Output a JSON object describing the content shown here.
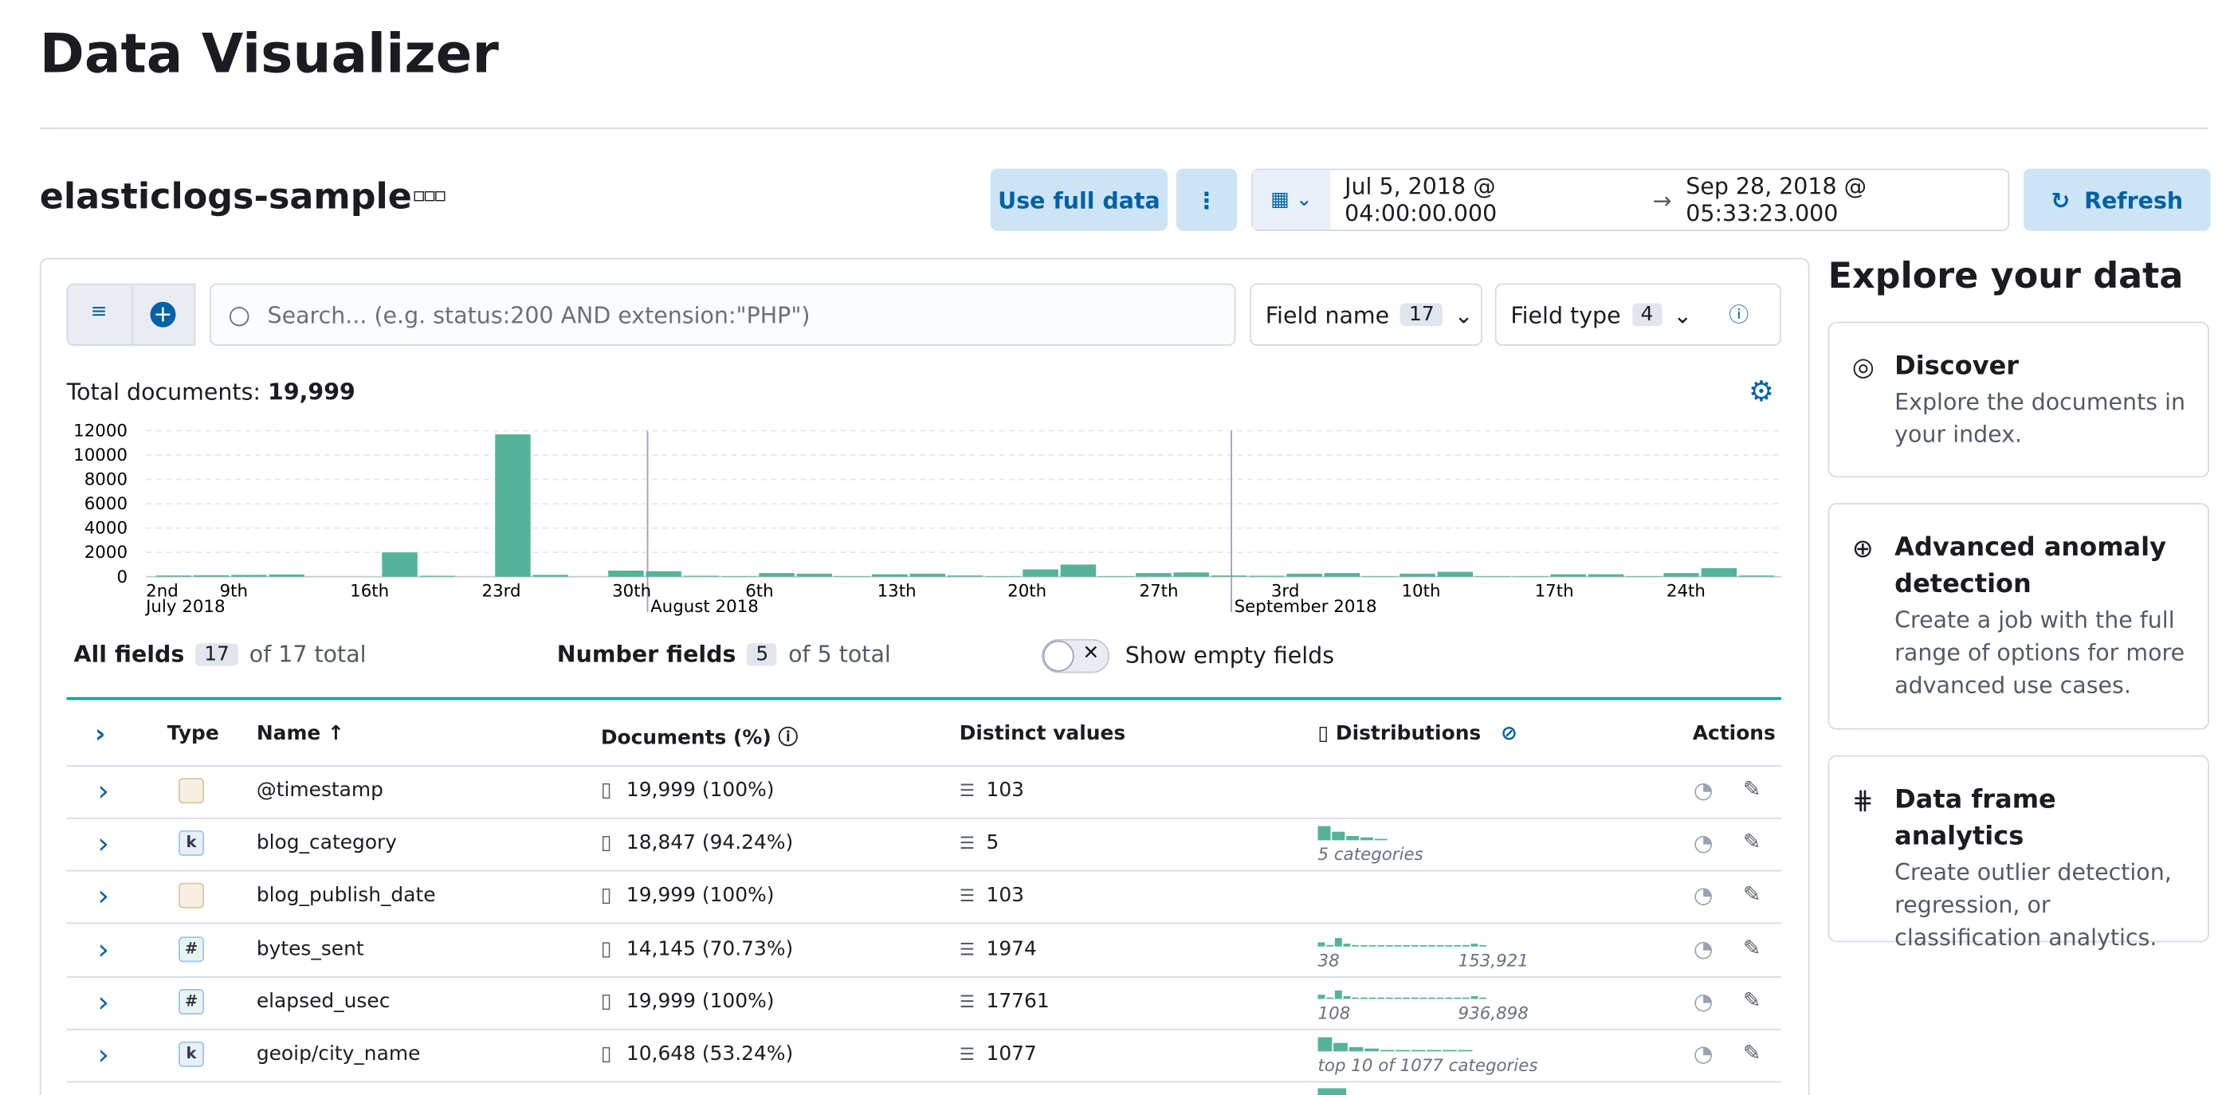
{
  "header": {
    "title": "Data Visualizer"
  },
  "index": {
    "name": "elasticlogs-sample"
  },
  "toolbar": {
    "use_full_data": "Use full data",
    "date_start": "Jul 5, 2018 @ 04:00:00.000",
    "date_end": "Sep 28, 2018 @ 05:33:23.000",
    "refresh": "Refresh"
  },
  "search": {
    "placeholder": "Search... (e.g. status:200 AND extension:\"PHP\")"
  },
  "filters": {
    "field_name": "Field name",
    "field_name_count": "17",
    "field_type": "Field type",
    "field_type_count": "4"
  },
  "totals": {
    "label": "Total documents:",
    "value": "19,999"
  },
  "histogram": {
    "ylim": [
      0,
      12000
    ],
    "yticks": [
      0,
      2000,
      4000,
      6000,
      8000,
      10000,
      12000
    ],
    "values": [
      100,
      120,
      150,
      180,
      0,
      0,
      2000,
      80,
      0,
      11700,
      150,
      0,
      500,
      450,
      80,
      50,
      300,
      250,
      50,
      200,
      250,
      100,
      50,
      600,
      1000,
      50,
      300,
      350,
      100,
      80,
      250,
      300,
      50,
      250,
      400,
      50,
      50,
      200,
      200,
      50,
      300,
      700,
      100
    ],
    "x_labels": [
      "2nd",
      "9th",
      "16th",
      "23rd",
      "30th",
      "6th",
      "13th",
      "20th",
      "27th",
      "3rd",
      "10th",
      "17th",
      "24th"
    ],
    "month_labels": [
      "July 2018",
      "August 2018",
      "September 2018"
    ]
  },
  "summary": {
    "all_fields": "All fields",
    "all_count": "17",
    "all_total": "of 17 total",
    "number_fields": "Number fields",
    "number_count": "5",
    "number_total": "of 5 total",
    "show_empty": "Show empty fields"
  },
  "table": {
    "columns": [
      "Type",
      "Name",
      "Documents (%)",
      "Distinct values",
      "Distributions",
      "Actions"
    ],
    "rows": [
      {
        "type": "",
        "name": "@timestamp",
        "documents": "19,999 (100%)",
        "distinct": "103"
      },
      {
        "type": "k",
        "name": "blog_category",
        "documents": "18,847 (94.24%)",
        "distinct": "5",
        "dist_caption": "5 categories"
      },
      {
        "type": "",
        "name": "blog_publish_date",
        "documents": "19,999 (100%)",
        "distinct": "103"
      },
      {
        "type": "#",
        "name": "bytes_sent",
        "documents": "14,145 (70.73%)",
        "distinct": "1974",
        "dist_min": "38",
        "dist_max": "153,921"
      },
      {
        "type": "#",
        "name": "elapsed_usec",
        "documents": "19,999 (100%)",
        "distinct": "17761",
        "dist_min": "108",
        "dist_max": "936,898"
      },
      {
        "type": "k",
        "name": "geoip/city_name",
        "documents": "10,648 (53.24%)",
        "distinct": "1077",
        "dist_caption": "top 10 of 1077 categories"
      }
    ]
  },
  "side": {
    "title": "Explore your data",
    "cards": [
      {
        "title": "Discover",
        "text": "Explore the documents in your index."
      },
      {
        "title": "Advanced anomaly detection",
        "text": "Create a job with the full range of options for more advanced use cases."
      },
      {
        "title": "Data frame analytics",
        "text": "Create outlier detection, regression, or classification analytics."
      }
    ]
  }
}
